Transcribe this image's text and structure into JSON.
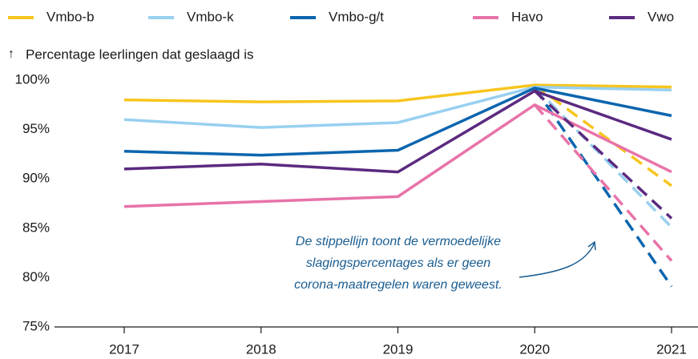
{
  "chart_data": {
    "type": "line",
    "y_label": "Percentage leerlingen dat geslaagd is",
    "categories": [
      "2017",
      "2018",
      "2019",
      "2020",
      "2021"
    ],
    "series": [
      {
        "name": "Vmbo-b",
        "color": "#f7c51e",
        "values": [
          98.0,
          97.8,
          97.9,
          99.5,
          99.3
        ],
        "projected": 89.3
      },
      {
        "name": "Vmbo-k",
        "color": "#98d0f0",
        "values": [
          96.0,
          95.2,
          95.7,
          99.3,
          99.0
        ],
        "projected": 85.1
      },
      {
        "name": "Vmbo-g/t",
        "color": "#0b65ae",
        "values": [
          92.8,
          92.4,
          92.9,
          99.2,
          96.4
        ],
        "projected": 79.1
      },
      {
        "name": "Havo",
        "color": "#e873a8",
        "values": [
          87.2,
          87.7,
          88.2,
          97.5,
          90.7
        ],
        "projected": 81.7
      },
      {
        "name": "Vwo",
        "color": "#5b2a80",
        "values": [
          91.0,
          91.5,
          90.7,
          98.9,
          94.0
        ],
        "projected": 86.0
      }
    ],
    "ylim": [
      75,
      100
    ],
    "yticks": [
      {
        "value": 75,
        "label": "75%"
      },
      {
        "value": 80,
        "label": "80%"
      },
      {
        "value": 85,
        "label": "85%"
      },
      {
        "value": 90,
        "label": "90%"
      },
      {
        "value": 95,
        "label": "95%"
      },
      {
        "value": 100,
        "label": "100%"
      }
    ],
    "annotation": [
      "De stippellijn toont de vermoedelijke",
      "slagingspercentages als er geen",
      "corona-maatregelen waren geweest."
    ],
    "grid": false
  }
}
